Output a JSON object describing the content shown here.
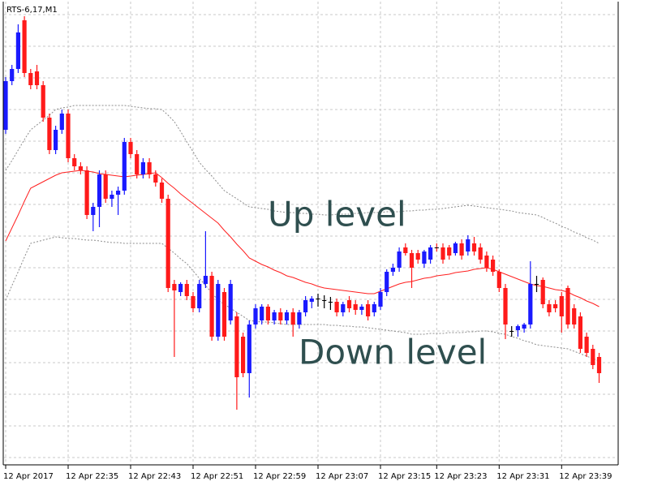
{
  "chart_data": {
    "type": "candlestick",
    "title": "RTS-6,17,M1",
    "annotations": [
      "Up level",
      "Down level"
    ],
    "categories": [
      "12 Apr 2017",
      null,
      null,
      null,
      null,
      null,
      null,
      null,
      null,
      null,
      "12 Apr 22:35",
      null,
      null,
      null,
      null,
      null,
      null,
      null,
      null,
      null,
      "12 Apr 22:43",
      null,
      null,
      null,
      null,
      null,
      null,
      null,
      null,
      null,
      "12 Apr 22:51",
      null,
      null,
      null,
      null,
      null,
      null,
      null,
      null,
      null,
      "12 Apr 22:59",
      null,
      null,
      null,
      null,
      null,
      null,
      null,
      null,
      null,
      "12 Apr 23:07",
      null,
      null,
      null,
      null,
      null,
      null,
      null,
      null,
      null,
      "12 Apr 23:15",
      null,
      null,
      null,
      null,
      null,
      null,
      null,
      null,
      "12 Apr 23:23",
      null,
      null,
      null,
      null,
      null,
      null,
      null,
      null,
      null,
      "12 Apr 23:31",
      null,
      null,
      null,
      null,
      null,
      null,
      null,
      null,
      null,
      "12 Apr 23:39",
      null,
      null,
      null,
      null,
      null,
      null
    ],
    "open": [
      440,
      500,
      515,
      575,
      510,
      512,
      495,
      455,
      415,
      440,
      460,
      405,
      395,
      390,
      335,
      345,
      385,
      355,
      360,
      365,
      425,
      410,
      385,
      400,
      385,
      375,
      355,
      250,
      240,
      250,
      235,
      220,
      250,
      260,
      185,
      240,
      205,
      210,
      185,
      140,
      200,
      205,
      222,
      205,
      215,
      205,
      215,
      200,
      215,
      228,
      232,
      230,
      228,
      228,
      215,
      230,
      225,
      218,
      225,
      215,
      222,
      240,
      265,
      270,
      295,
      288,
      288,
      275,
      280,
      295,
      295,
      295,
      288,
      300,
      290,
      300,
      295,
      285,
      280,
      265,
      245,
      192,
      193,
      195,
      200,
      250,
      255,
      225,
      225,
      235,
      245,
      220,
      210,
      185,
      170,
      160
    ],
    "high": [
      505,
      520,
      570,
      580,
      515,
      520,
      500,
      460,
      445,
      465,
      465,
      410,
      400,
      395,
      350,
      390,
      390,
      365,
      370,
      430,
      430,
      415,
      405,
      405,
      390,
      380,
      360,
      255,
      252,
      255,
      240,
      255,
      315,
      265,
      255,
      245,
      255,
      215,
      190,
      205,
      225,
      225,
      225,
      218,
      220,
      218,
      220,
      218,
      235,
      235,
      238,
      236,
      234,
      232,
      228,
      235,
      230,
      225,
      230,
      228,
      245,
      268,
      275,
      295,
      300,
      292,
      292,
      292,
      298,
      300,
      300,
      298,
      302,
      305,
      310,
      308,
      300,
      290,
      285,
      268,
      250,
      198,
      200,
      202,
      278,
      260,
      258,
      230,
      230,
      240,
      248,
      225,
      215,
      190,
      175,
      165
    ],
    "low": [
      435,
      495,
      510,
      505,
      490,
      490,
      450,
      410,
      410,
      435,
      400,
      390,
      385,
      330,
      315,
      320,
      350,
      345,
      335,
      360,
      405,
      380,
      380,
      380,
      370,
      350,
      240,
      160,
      235,
      230,
      215,
      215,
      245,
      180,
      180,
      180,
      200,
      95,
      135,
      110,
      195,
      200,
      200,
      200,
      200,
      200,
      185,
      195,
      210,
      220,
      222,
      220,
      218,
      210,
      210,
      215,
      212,
      212,
      205,
      210,
      218,
      235,
      260,
      265,
      285,
      245,
      275,
      270,
      275,
      290,
      275,
      280,
      285,
      280,
      285,
      285,
      275,
      265,
      260,
      240,
      182,
      185,
      185,
      190,
      195,
      240,
      220,
      210,
      215,
      190,
      195,
      195,
      165,
      160,
      145,
      128
    ],
    "close": [
      500,
      515,
      560,
      510,
      495,
      495,
      455,
      415,
      440,
      460,
      405,
      395,
      390,
      335,
      345,
      385,
      355,
      360,
      365,
      425,
      410,
      385,
      400,
      385,
      375,
      355,
      245,
      242,
      250,
      235,
      220,
      250,
      260,
      185,
      250,
      185,
      250,
      135,
      140,
      200,
      220,
      222,
      205,
      215,
      205,
      215,
      200,
      215,
      230,
      232,
      232,
      230,
      228,
      215,
      225,
      220,
      218,
      222,
      210,
      225,
      240,
      265,
      270,
      290,
      288,
      270,
      280,
      290,
      295,
      294,
      280,
      285,
      300,
      285,
      305,
      290,
      280,
      270,
      265,
      245,
      200,
      192,
      198,
      200,
      250,
      250,
      225,
      215,
      220,
      210,
      200,
      200,
      170,
      165,
      150,
      140
    ],
    "up_color": "#1a1aff",
    "down_color": "#ff1a1a",
    "lines": [
      {
        "color": "#ff2020",
        "style": "solid",
        "values": [
          303,
          319,
          335,
          352,
          368,
          372,
          376,
          380,
          384,
          387,
          388,
          389,
          390,
          389,
          388,
          386,
          385,
          384,
          383,
          382,
          383,
          384,
          385,
          386,
          387,
          381,
          374,
          368,
          361,
          355,
          349,
          343,
          337,
          331,
          325,
          316,
          308,
          299,
          291,
          282,
          278,
          274,
          271,
          267,
          264,
          260,
          258,
          255,
          252,
          250,
          247,
          245,
          244,
          243,
          242,
          241,
          240,
          239,
          238,
          238,
          241,
          244,
          247,
          250,
          252,
          253,
          255,
          257,
          258,
          260,
          261,
          262,
          264,
          265,
          266,
          268,
          269,
          270,
          268,
          265,
          262,
          259,
          256,
          253,
          250,
          248,
          247,
          245,
          243,
          242,
          240,
          236,
          233,
          229,
          226,
          222
        ]
      },
      {
        "color": "#8c8c8c",
        "style": "dashed",
        "values": [
          390,
          402,
          415,
          428,
          440,
          446,
          452,
          458,
          465,
          467,
          468,
          470,
          470,
          470,
          470,
          470,
          470,
          470,
          470,
          470,
          469,
          468,
          467,
          466,
          466,
          465,
          458,
          450,
          438,
          425,
          413,
          400,
          391,
          383,
          374,
          365,
          360,
          355,
          350,
          345,
          344,
          343,
          342,
          340,
          339,
          338,
          338,
          337,
          337,
          336,
          336,
          335,
          335,
          336,
          336,
          336,
          337,
          337,
          338,
          338,
          338,
          339,
          339,
          339,
          340,
          340,
          341,
          341,
          342,
          342,
          343,
          344,
          345,
          346,
          347,
          346,
          345,
          344,
          343,
          342,
          341,
          340,
          338,
          337,
          336,
          335,
          332,
          328,
          325,
          321,
          318,
          314,
          311,
          307,
          304,
          300
        ]
      },
      {
        "color": "#8c8c8c",
        "style": "dashed",
        "values": [
          230,
          248,
          265,
          283,
          300,
          302,
          304,
          306,
          308,
          307,
          306,
          306,
          305,
          304,
          304,
          303,
          302,
          301,
          301,
          300,
          300,
          300,
          300,
          300,
          300,
          300,
          294,
          288,
          281,
          275,
          266,
          257,
          248,
          239,
          230,
          225,
          220,
          215,
          210,
          205,
          204,
          203,
          203,
          202,
          201,
          200,
          200,
          200,
          200,
          200,
          200,
          200,
          199,
          199,
          198,
          198,
          197,
          197,
          196,
          195,
          194,
          193,
          192,
          191,
          190,
          188,
          188,
          188,
          189,
          189,
          189,
          190,
          190,
          190,
          191,
          191,
          192,
          192,
          191,
          189,
          188,
          185,
          183,
          180,
          178,
          175,
          174,
          173,
          172,
          171,
          170,
          167,
          164,
          161,
          158,
          155
        ]
      }
    ],
    "ylim": [
      30,
      596
    ],
    "grid": true
  }
}
